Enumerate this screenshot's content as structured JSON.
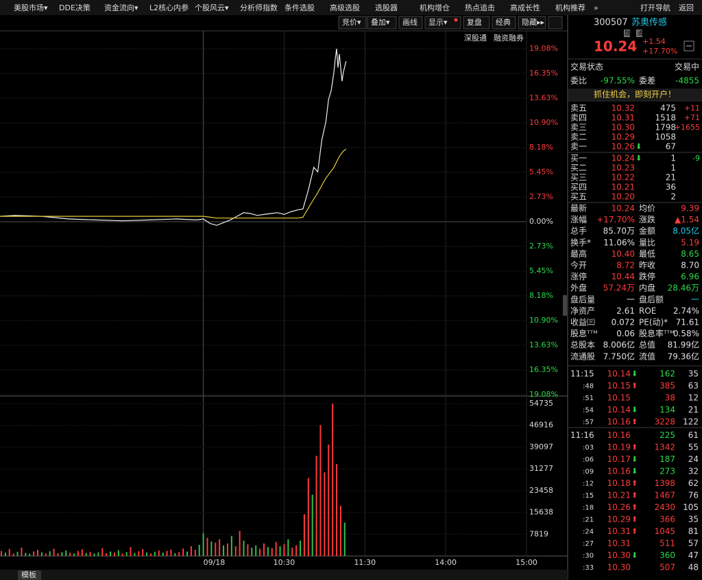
{
  "menu": [
    "美股市场▾",
    "DDE决策",
    "资金流向▾",
    "L2核心内参",
    "个股风云▾",
    "分析师指数",
    "条件选股",
    "高级选股",
    "选股器",
    "机构增仓",
    "热点追击",
    "高成长性",
    "机构推荐",
    "»",
    "打开导航",
    "返回"
  ],
  "toolbar": [
    "竞价▾",
    "叠加▾",
    "画线",
    "显示▾",
    "复盘",
    "经典",
    "隐藏▸▸"
  ],
  "links": [
    "深股通",
    "融资融券"
  ],
  "bottom_tab": "模板",
  "chart_data": [
    {
      "type": "line",
      "xlim": [
        -151,
        240
      ],
      "xticks": [
        {
          "value": 0,
          "label": "09/18"
        },
        {
          "value": 60,
          "label": "10:30"
        },
        {
          "value": 120,
          "label": "11:30"
        },
        {
          "value": 180,
          "label": "14:00"
        },
        {
          "value": 240,
          "label": "15:00"
        }
      ],
      "ylim": [
        -19.08,
        19.08
      ],
      "yticks": [
        {
          "value": 19.08,
          "label": "19.08%"
        },
        {
          "value": 16.35,
          "label": "16.35%"
        },
        {
          "value": 13.63,
          "label": "13.63%"
        },
        {
          "value": 10.9,
          "label": "10.90%"
        },
        {
          "value": 8.18,
          "label": "8.18%"
        },
        {
          "value": 5.45,
          "label": "5.45%"
        },
        {
          "value": 2.73,
          "label": "2.73%"
        },
        {
          "value": 0,
          "label": "0.00%"
        },
        {
          "value": -2.73,
          "label": "2.73%"
        },
        {
          "value": -5.45,
          "label": "5.45%"
        },
        {
          "value": -8.18,
          "label": "8.18%"
        },
        {
          "value": -10.9,
          "label": "10.90%"
        },
        {
          "value": -13.63,
          "label": "13.63%"
        },
        {
          "value": -16.35,
          "label": "16.35%"
        },
        {
          "value": -19.08,
          "label": "19.08%"
        }
      ],
      "grid": true,
      "x": [
        -151,
        -140,
        -120,
        -100,
        -80,
        -60,
        -40,
        -20,
        -5,
        0,
        5,
        10,
        15,
        20,
        25,
        30,
        35,
        40,
        45,
        50,
        55,
        60,
        65,
        70,
        74,
        78,
        82,
        85,
        88,
        91,
        93,
        95,
        97,
        98,
        99,
        100,
        101,
        103,
        104,
        106
      ],
      "series": [
        {
          "color": "#f0f0f0",
          "values": [
            0.6,
            0.7,
            0.6,
            0.3,
            0.2,
            0.1,
            0.2,
            0.3,
            0.2,
            0.3,
            -0.2,
            -0.4,
            -0.1,
            0.2,
            0.6,
            1.0,
            0.9,
            0.7,
            0.8,
            0.9,
            1.0,
            0.8,
            1.1,
            1.3,
            1.4,
            3.5,
            6.0,
            5.5,
            9.0,
            11.0,
            13.5,
            14.5,
            16.5,
            18.0,
            19.08,
            17.0,
            18.5,
            15.5,
            16.5,
            17.7
          ]
        },
        {
          "color": "#e6cc3a",
          "values": [
            0.6,
            0.6,
            0.6,
            0.6,
            0.6,
            0.6,
            0.6,
            0.6,
            0.6,
            0.6,
            0.5,
            0.4,
            0.4,
            0.4,
            0.4,
            0.4,
            0.4,
            0.4,
            0.4,
            0.4,
            0.4,
            0.4,
            0.4,
            0.4,
            0.5,
            1.5,
            2.5,
            3.2,
            4.0,
            4.8,
            5.2,
            5.6,
            6.0,
            6.3,
            6.6,
            6.9,
            7.2,
            7.6,
            7.8,
            8.0
          ]
        }
      ]
    },
    {
      "type": "bar",
      "xlim": [
        -151,
        240
      ],
      "ylim": [
        0,
        56700
      ],
      "yticks": [
        54735,
        46916,
        39097,
        31277,
        23458,
        15638,
        7819
      ],
      "x": [
        -150,
        -147,
        -144,
        -141,
        -138,
        -135,
        -132,
        -129,
        -126,
        -123,
        -120,
        -117,
        -114,
        -111,
        -108,
        -105,
        -102,
        -99,
        -96,
        -93,
        -90,
        -87,
        -84,
        -81,
        -78,
        -75,
        -72,
        -69,
        -66,
        -63,
        -60,
        -57,
        -54,
        -51,
        -48,
        -45,
        -42,
        -39,
        -36,
        -33,
        -30,
        -27,
        -24,
        -21,
        -18,
        -15,
        -12,
        -9,
        -6,
        -3,
        0,
        3,
        6,
        9,
        12,
        15,
        18,
        21,
        24,
        27,
        30,
        33,
        36,
        39,
        42,
        45,
        48,
        51,
        54,
        57,
        60,
        63,
        66,
        69,
        72,
        75,
        78,
        81,
        84,
        87,
        90,
        93,
        96,
        99,
        102,
        105
      ],
      "values": [
        1800,
        1200,
        2500,
        900,
        1500,
        3000,
        1100,
        800,
        1600,
        2200,
        1300,
        900,
        1700,
        2600,
        1000,
        1400,
        2000,
        1200,
        900,
        1800,
        2400,
        1100,
        1500,
        900,
        1300,
        2800,
        1000,
        1600,
        1200,
        2100,
        900,
        1400,
        3200,
        1100,
        1700,
        2500,
        1300,
        900,
        1500,
        2000,
        1200,
        1800,
        2300,
        1000,
        1400,
        2700,
        1600,
        3500,
        2200,
        4000,
        8200,
        6500,
        5200,
        4800,
        6000,
        3800,
        4500,
        7200,
        3500,
        9000,
        5500,
        4200,
        3000,
        3800,
        2600,
        4500,
        3200,
        2800,
        5000,
        3500,
        4200,
        6000,
        3000,
        3800,
        5500,
        15000,
        28000,
        22000,
        36000,
        47000,
        30000,
        40000,
        54735,
        33000,
        18000,
        12000
      ],
      "colors": [
        "#ff3b3b",
        "#2ec24a",
        "#ff3b3b",
        "#ff3b3b",
        "#2ec24a",
        "#ff3b3b",
        "#2ec24a",
        "#2ec24a",
        "#ff3b3b",
        "#ff3b3b",
        "#2ec24a",
        "#ff3b3b",
        "#2ec24a",
        "#ff3b3b",
        "#ff3b3b",
        "#2ec24a",
        "#2ec24a",
        "#ff3b3b",
        "#2ec24a",
        "#ff3b3b",
        "#ff3b3b",
        "#2ec24a",
        "#ff3b3b",
        "#2ec24a",
        "#2ec24a",
        "#ff3b3b",
        "#ff3b3b",
        "#2ec24a",
        "#ff3b3b",
        "#2ec24a",
        "#ff3b3b",
        "#2ec24a",
        "#ff3b3b",
        "#2ec24a",
        "#ff3b3b",
        "#ff3b3b",
        "#2ec24a",
        "#ff3b3b",
        "#2ec24a",
        "#ff3b3b",
        "#2ec24a",
        "#ff3b3b",
        "#ff3b3b",
        "#2ec24a",
        "#ff3b3b",
        "#ff3b3b",
        "#2ec24a",
        "#ff3b3b",
        "#ff3b3b",
        "#2ec24a",
        "#2ec24a",
        "#ff3b3b",
        "#2ec24a",
        "#ff3b3b",
        "#ff3b3b",
        "#2ec24a",
        "#ff3b3b",
        "#2ec24a",
        "#ff3b3b",
        "#ff3b3b",
        "#2ec24a",
        "#ff3b3b",
        "#2ec24a",
        "#2ec24a",
        "#ff3b3b",
        "#ff3b3b",
        "#2ec24a",
        "#ff3b3b",
        "#ff3b3b",
        "#2ec24a",
        "#ff3b3b",
        "#2ec24a",
        "#ff3b3b",
        "#ff3b3b",
        "#2ec24a",
        "#ff3b3b",
        "#ff3b3b",
        "#2ec24a",
        "#ff3b3b",
        "#ff3b3b",
        "#ff3b3b",
        "#ff3b3b",
        "#ff3b3b",
        "#ff3b3b",
        "#ff3b3b",
        "#2ec24a"
      ]
    }
  ],
  "quote": {
    "code": "300507",
    "name": "苏奥传感",
    "badges": [
      "融",
      "通"
    ],
    "price": "10.24",
    "change": "+1.54",
    "pct": "+17.70%"
  },
  "status": {
    "label": "交易状态",
    "value": "交易中"
  },
  "ratio": [
    {
      "k": "委比",
      "v": "-97.55%",
      "color": "#2ed94a"
    },
    {
      "k": "委差",
      "v": "-4855",
      "color": "#2ed94a"
    }
  ],
  "banner": "抓住机会，即刻开户！",
  "asks": [
    {
      "label": "卖五",
      "price": "10.32",
      "vol": "475",
      "chg": "+11"
    },
    {
      "label": "卖四",
      "price": "10.31",
      "vol": "1518",
      "chg": "+71"
    },
    {
      "label": "卖三",
      "price": "10.30",
      "vol": "1798",
      "chg": "+1655"
    },
    {
      "label": "卖二",
      "price": "10.29",
      "vol": "1058"
    },
    {
      "label": "卖一",
      "price": "10.26",
      "dir": "⬇",
      "vol": "67"
    }
  ],
  "bids": [
    {
      "label": "买一",
      "price": "10.24",
      "dir": "⬇",
      "vol": "1",
      "chg": "-9"
    },
    {
      "label": "买二",
      "price": "10.23",
      "vol": "1"
    },
    {
      "label": "买三",
      "price": "10.22",
      "vol": "21"
    },
    {
      "label": "买四",
      "price": "10.21",
      "vol": "36"
    },
    {
      "label": "买五",
      "price": "10.20",
      "vol": "2"
    }
  ],
  "stats": [
    [
      {
        "k": "最新",
        "v": "10.24",
        "color": "#ff3b3b"
      },
      {
        "k": "均价",
        "v": "9.39",
        "color": "#ff3b3b"
      }
    ],
    [
      {
        "k": "涨幅",
        "v": "+17.70%",
        "color": "#ff3b3b"
      },
      {
        "k": "涨跌",
        "v": "▲1.54",
        "color": "#ff3b3b"
      }
    ],
    [
      {
        "k": "总手",
        "v": "85.70万",
        "color": "#e0e0e0"
      },
      {
        "k": "金额",
        "v": "8.05亿",
        "color": "#22c8e8"
      }
    ],
    [
      {
        "k": "换手*",
        "v": "11.06%",
        "color": "#e0e0e0"
      },
      {
        "k": "量比",
        "v": "5.19",
        "color": "#ff3b3b"
      }
    ],
    [
      {
        "k": "最高",
        "v": "10.40",
        "color": "#ff3b3b"
      },
      {
        "k": "最低",
        "v": "8.65",
        "color": "#2ed94a"
      }
    ],
    [
      {
        "k": "今开",
        "v": "8.72",
        "color": "#ff3b3b"
      },
      {
        "k": "昨收",
        "v": "8.70",
        "color": "#e0e0e0"
      }
    ],
    [
      {
        "k": "涨停",
        "v": "10.44",
        "color": "#ff3b3b"
      },
      {
        "k": "跌停",
        "v": "6.96",
        "color": "#2ed94a"
      }
    ],
    [
      {
        "k": "外盘",
        "v": "57.24万",
        "color": "#ff3b3b"
      },
      {
        "k": "内盘",
        "v": "28.46万",
        "color": "#2ed94a"
      }
    ],
    [
      {
        "k": "盘后量",
        "v": "一",
        "color": "#e0e0e0"
      },
      {
        "k": "盘后额",
        "v": "一",
        "color": "#22c8e8"
      }
    ],
    [
      {
        "k": "净资产",
        "v": "2.61",
        "color": "#e0e0e0"
      },
      {
        "k": "ROE",
        "v": "2.74%",
        "color": "#e0e0e0"
      }
    ],
    [
      {
        "k": "收益㈢",
        "v": "0.072",
        "color": "#e0e0e0"
      },
      {
        "k": "PE(动)*",
        "v": "71.61",
        "color": "#e0e0e0"
      }
    ],
    [
      {
        "k": "股息ᵀᵀᴹ",
        "v": "0.06",
        "color": "#e0e0e0"
      },
      {
        "k": "股息率ᵀᵀᴹ",
        "v": "0.58%",
        "color": "#e0e0e0"
      }
    ],
    [
      {
        "k": "总股本",
        "v": "8.006亿",
        "color": "#e0e0e0"
      },
      {
        "k": "总值",
        "v": "81.99亿",
        "color": "#e0e0e0"
      }
    ],
    [
      {
        "k": "流通股",
        "v": "7.750亿",
        "color": "#e0e0e0"
      },
      {
        "k": "流值",
        "v": "79.36亿",
        "color": "#e0e0e0"
      }
    ]
  ],
  "ticks": [
    {
      "time": "11:15",
      "price": "10.14",
      "dir": "⬇",
      "vol": "162",
      "vol_color": "#2ed94a",
      "n": "35"
    },
    {
      "time": ":48",
      "price": "10.15",
      "dir": "⬆",
      "vol": "385",
      "vol_color": "#ff3b3b",
      "n": "63"
    },
    {
      "time": ":51",
      "price": "10.15",
      "vol": "38",
      "vol_color": "#ff3b3b",
      "n": "12"
    },
    {
      "time": ":54",
      "price": "10.14",
      "dir": "⬇",
      "vol": "134",
      "vol_color": "#2ed94a",
      "n": "21"
    },
    {
      "time": ":57",
      "price": "10.16",
      "dir": "⬆",
      "vol": "3228",
      "vol_color": "#ff3b3b",
      "n": "122"
    },
    {
      "time": "11:16",
      "price": "10.16",
      "vol": "225",
      "vol_color": "#2ed94a",
      "n": "61"
    },
    {
      "time": ":03",
      "price": "10.19",
      "dir": "⬆",
      "vol": "1342",
      "vol_color": "#ff3b3b",
      "n": "55"
    },
    {
      "time": ":06",
      "price": "10.17",
      "dir": "⬇",
      "vol": "187",
      "vol_color": "#2ed94a",
      "n": "24"
    },
    {
      "time": ":09",
      "price": "10.16",
      "dir": "⬇",
      "vol": "273",
      "vol_color": "#2ed94a",
      "n": "32"
    },
    {
      "time": ":12",
      "price": "10.18",
      "dir": "⬆",
      "vol": "1398",
      "vol_color": "#ff3b3b",
      "n": "62"
    },
    {
      "time": ":15",
      "price": "10.21",
      "dir": "⬆",
      "vol": "1467",
      "vol_color": "#ff3b3b",
      "n": "76"
    },
    {
      "time": ":18",
      "price": "10.26",
      "dir": "⬆",
      "vol": "2430",
      "vol_color": "#ff3b3b",
      "n": "105"
    },
    {
      "time": ":21",
      "price": "10.29",
      "dir": "⬆",
      "vol": "366",
      "vol_color": "#ff3b3b",
      "n": "35"
    },
    {
      "time": ":24",
      "price": "10.31",
      "dir": "⬆",
      "vol": "1045",
      "vol_color": "#ff3b3b",
      "n": "81"
    },
    {
      "time": ":27",
      "price": "10.31",
      "vol": "511",
      "vol_color": "#ff3b3b",
      "n": "57"
    },
    {
      "time": ":30",
      "price": "10.30",
      "dir": "⬇",
      "vol": "360",
      "vol_color": "#2ed94a",
      "n": "47"
    },
    {
      "time": ":33",
      "price": "10.30",
      "vol": "507",
      "vol_color": "#ff3b3b",
      "n": "48"
    }
  ]
}
